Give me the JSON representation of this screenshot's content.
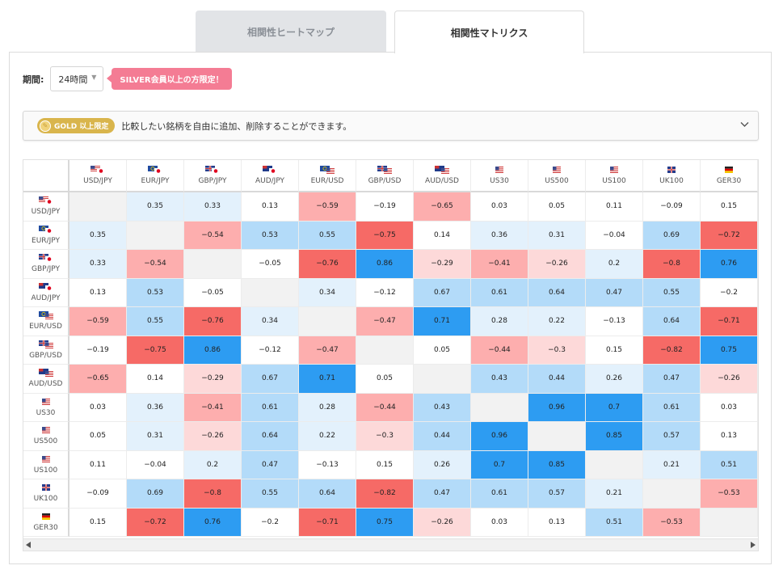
{
  "tabs": {
    "heatmap": "相関性ヒートマップ",
    "matrix": "相関性マトリクス"
  },
  "period": {
    "label": "期間:",
    "value": "24時間",
    "silver_notice": "SILVER会員以上の方限定！"
  },
  "gold_bar": {
    "badge": "GOLD 以上限定",
    "text": "比較したい銘柄を自由に追加、削除することができます。"
  },
  "colors": {
    "neg_strong": "#f66a66",
    "neg_mid": "#fdaeae",
    "neg_light": "#fdd9d9",
    "pos_strong": "#2d9cf2",
    "pos_mid": "#b3dbf9",
    "pos_light": "#e3f1fc",
    "diag": "#f2f2f2"
  },
  "matrix": {
    "symbols": [
      {
        "label": "USD/JPY",
        "flag": "us-jp"
      },
      {
        "label": "EUR/JPY",
        "flag": "eu-jp"
      },
      {
        "label": "GBP/JPY",
        "flag": "gb-jp"
      },
      {
        "label": "AUD/JPY",
        "flag": "au-jp"
      },
      {
        "label": "EUR/USD",
        "flag": "eu-us"
      },
      {
        "label": "GBP/USD",
        "flag": "gb-us"
      },
      {
        "label": "AUD/USD",
        "flag": "au-us"
      },
      {
        "label": "US30",
        "flag": "us"
      },
      {
        "label": "US500",
        "flag": "us"
      },
      {
        "label": "US100",
        "flag": "us"
      },
      {
        "label": "UK100",
        "flag": "gb"
      },
      {
        "label": "GER30",
        "flag": "de"
      }
    ],
    "values": [
      [
        null,
        0.35,
        0.33,
        0.13,
        -0.59,
        -0.19,
        -0.65,
        0.03,
        0.05,
        0.11,
        -0.09,
        0.15
      ],
      [
        0.35,
        null,
        -0.54,
        0.53,
        0.55,
        -0.75,
        0.14,
        0.36,
        0.31,
        -0.04,
        0.69,
        -0.72
      ],
      [
        0.33,
        -0.54,
        null,
        -0.05,
        -0.76,
        0.86,
        -0.29,
        -0.41,
        -0.26,
        0.2,
        -0.8,
        0.76
      ],
      [
        0.13,
        0.53,
        -0.05,
        null,
        0.34,
        -0.12,
        0.67,
        0.61,
        0.64,
        0.47,
        0.55,
        -0.2
      ],
      [
        -0.59,
        0.55,
        -0.76,
        0.34,
        null,
        -0.47,
        0.71,
        0.28,
        0.22,
        -0.13,
        0.64,
        -0.71
      ],
      [
        -0.19,
        -0.75,
        0.86,
        -0.12,
        -0.47,
        null,
        0.05,
        -0.44,
        -0.3,
        0.15,
        -0.82,
        0.75
      ],
      [
        -0.65,
        0.14,
        -0.29,
        0.67,
        0.71,
        0.05,
        null,
        0.43,
        0.44,
        0.26,
        0.47,
        -0.26
      ],
      [
        0.03,
        0.36,
        -0.41,
        0.61,
        0.28,
        -0.44,
        0.43,
        null,
        0.96,
        0.7,
        0.61,
        0.03
      ],
      [
        0.05,
        0.31,
        -0.26,
        0.64,
        0.22,
        -0.3,
        0.44,
        0.96,
        null,
        0.85,
        0.57,
        0.13
      ],
      [
        0.11,
        -0.04,
        0.2,
        0.47,
        -0.13,
        0.15,
        0.26,
        0.7,
        0.85,
        null,
        0.21,
        0.51
      ],
      [
        -0.09,
        0.69,
        -0.8,
        0.55,
        0.64,
        -0.82,
        0.47,
        0.61,
        0.57,
        0.21,
        null,
        -0.53
      ],
      [
        0.15,
        -0.72,
        0.76,
        -0.2,
        -0.71,
        0.75,
        -0.26,
        0.03,
        0.13,
        0.51,
        -0.53,
        null
      ]
    ]
  }
}
